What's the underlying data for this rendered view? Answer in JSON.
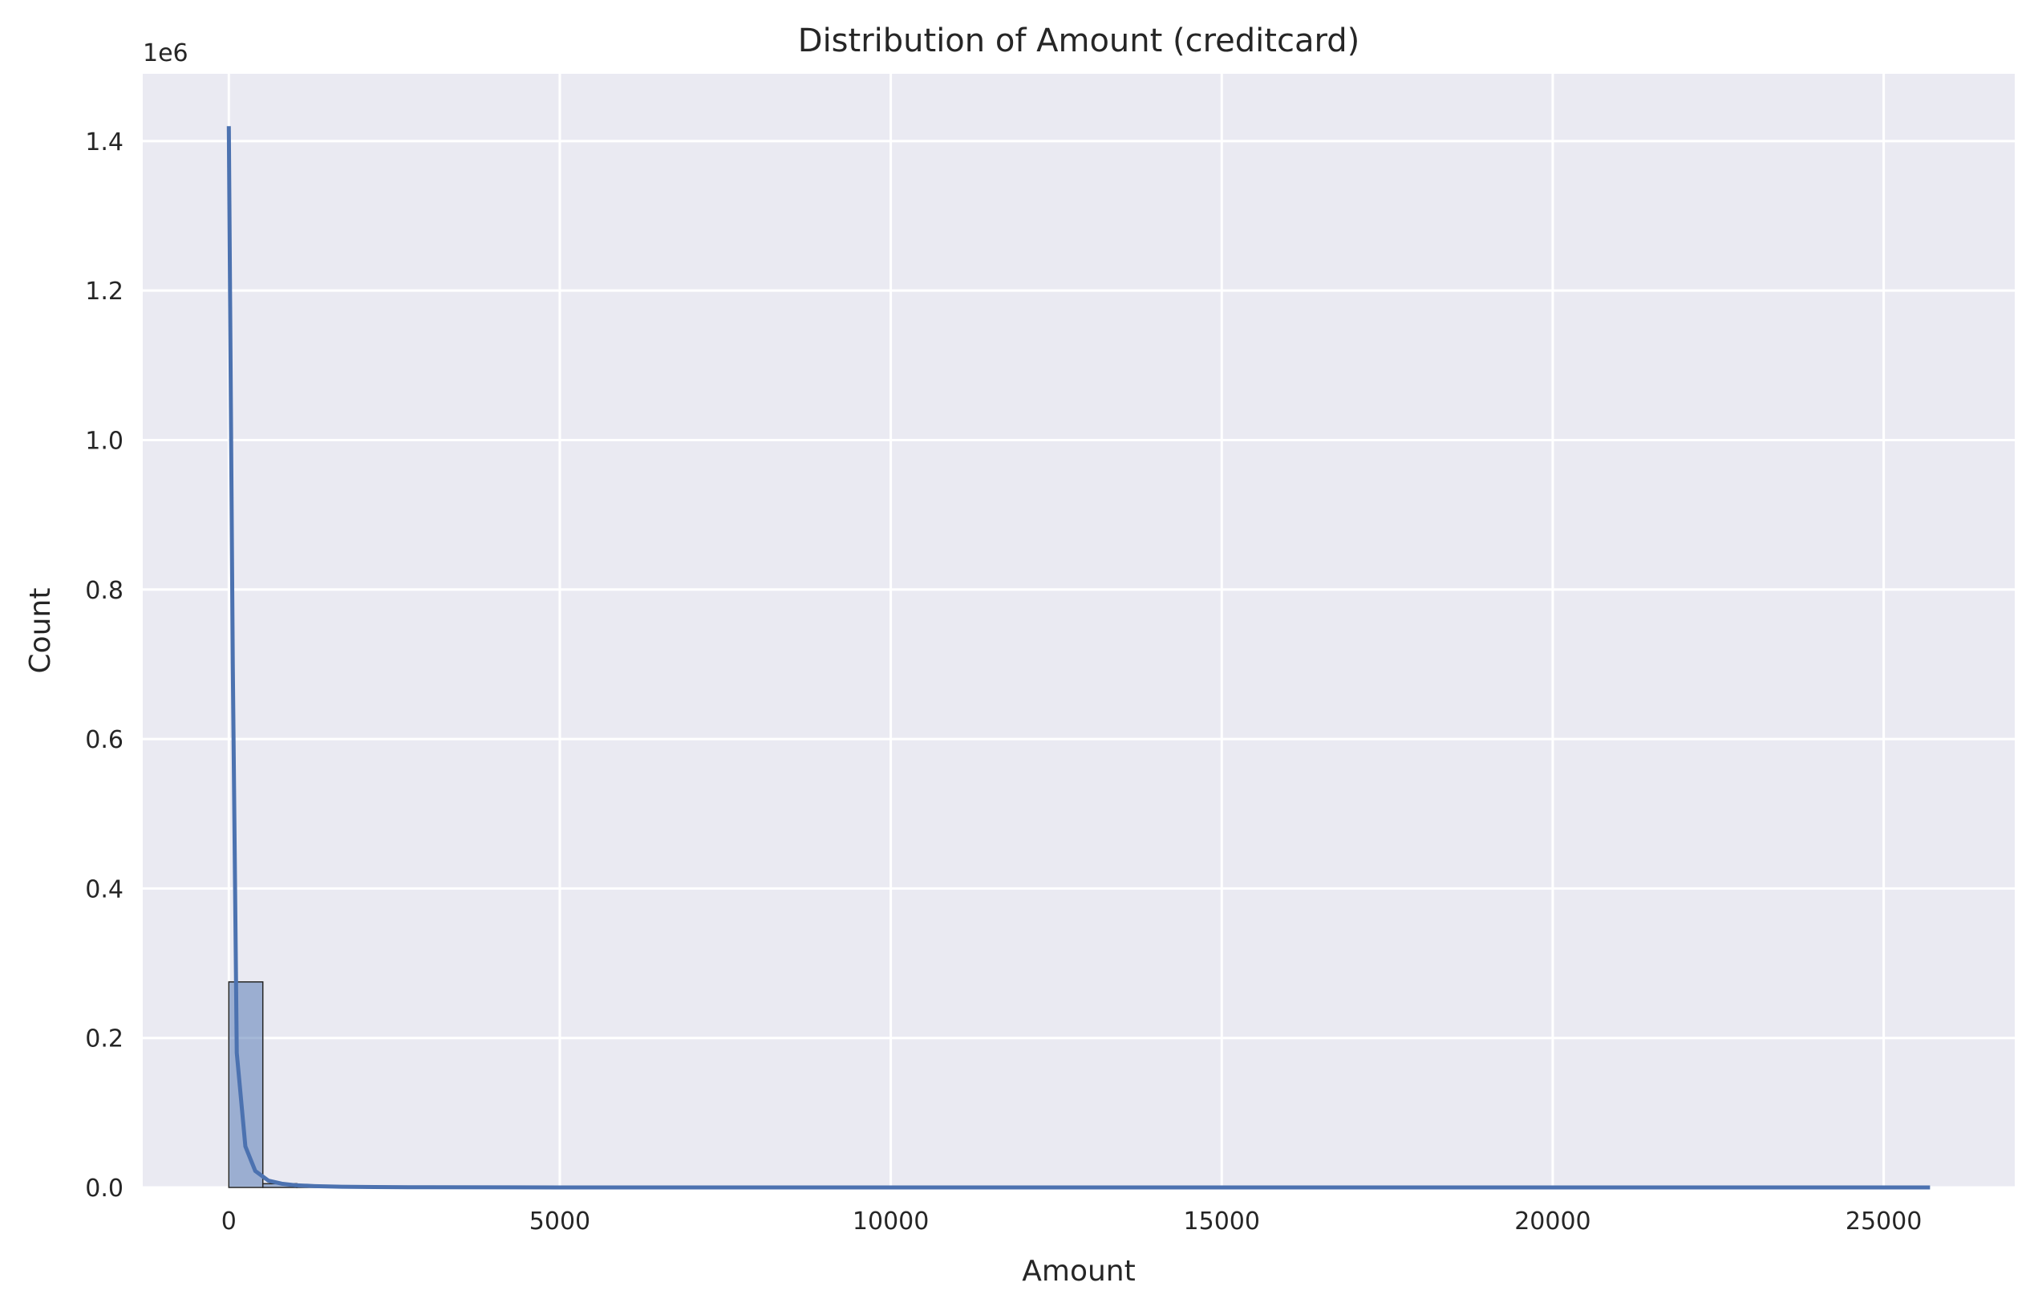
{
  "chart_data": {
    "type": "histogram",
    "title": "Distribution of Amount (creditcard)",
    "xlabel": "Amount",
    "ylabel": "Count",
    "y_offset_label": "1e6",
    "y_multiplier": 1000000,
    "xlim": [
      -1300,
      26980
    ],
    "ylim": [
      0,
      1490000
    ],
    "x_ticks": [
      0,
      5000,
      10000,
      15000,
      20000,
      25000
    ],
    "x_tick_labels": [
      "0",
      "5000",
      "10000",
      "15000",
      "20000",
      "25000"
    ],
    "y_ticks": [
      0,
      200000,
      400000,
      600000,
      800000,
      1000000,
      1200000,
      1400000
    ],
    "y_tick_labels": [
      "0.0",
      "0.2",
      "0.4",
      "0.6",
      "0.8",
      "1.0",
      "1.2",
      "1.4"
    ],
    "grid": true,
    "bins": [
      {
        "x0": 0,
        "x1": 514,
        "count": 275000
      },
      {
        "x0": 514,
        "x1": 1028,
        "count": 5000
      },
      {
        "x0": 1028,
        "x1": 1542,
        "count": 700
      },
      {
        "x0": 1542,
        "x1": 2056,
        "count": 200
      },
      {
        "x0": 2056,
        "x1": 2570,
        "count": 80
      }
    ],
    "kde": {
      "x": [
        0,
        60,
        120,
        250,
        400,
        600,
        800,
        1000,
        1300,
        1700,
        2200,
        3000,
        5000,
        10000,
        15000,
        20000,
        25700
      ],
      "y": [
        1420000,
        700000,
        180000,
        55000,
        22000,
        9000,
        5000,
        3000,
        1800,
        1000,
        500,
        200,
        50,
        0,
        0,
        0,
        0
      ]
    },
    "colors": {
      "plot_background": "#eaeaf2",
      "grid": "#ffffff",
      "bar_fill": "#4c72b0",
      "bar_opacity": 0.5,
      "bar_edge": "#262626",
      "kde_line": "#4c72b0"
    }
  }
}
